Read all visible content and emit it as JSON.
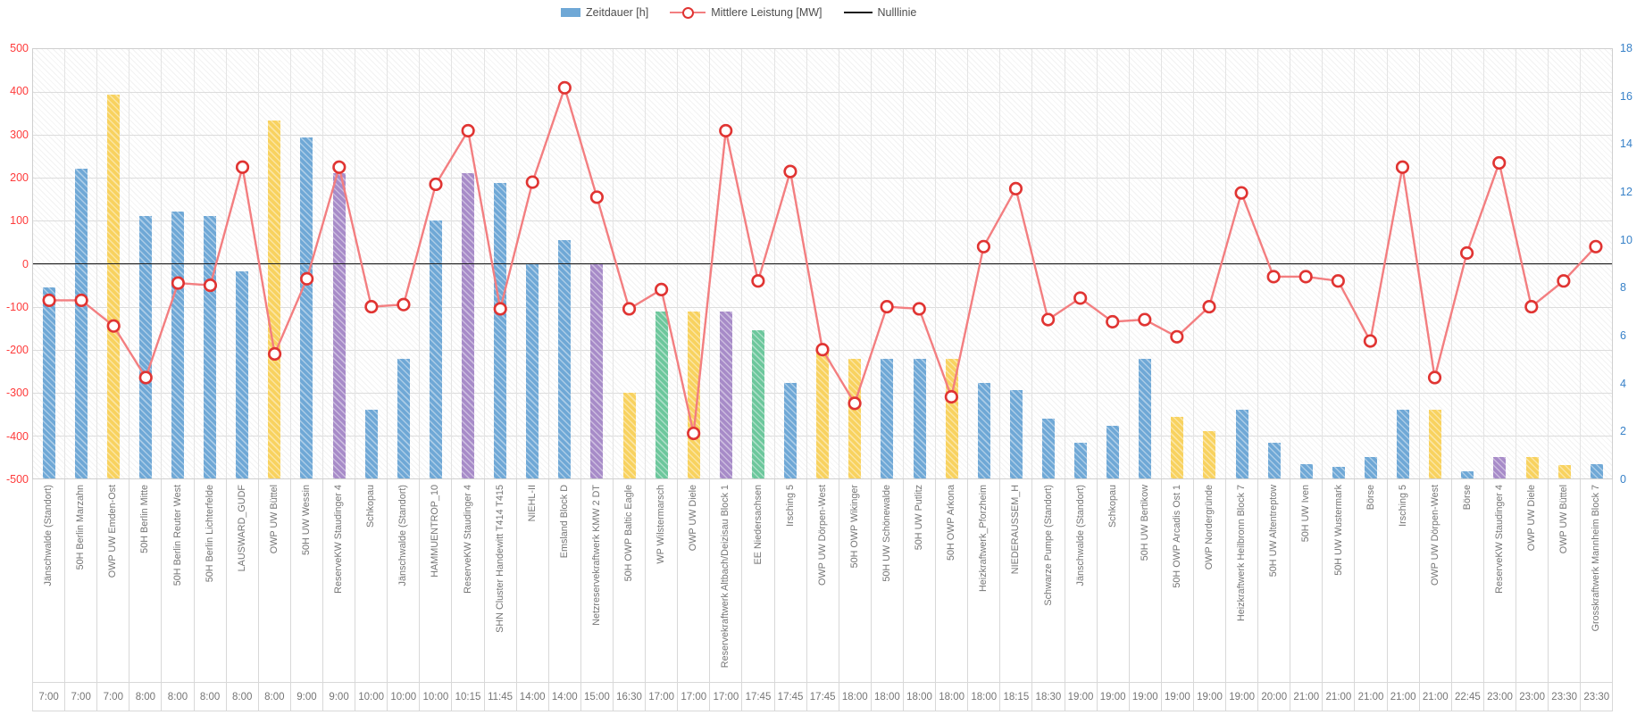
{
  "legend": {
    "bars_label": "Zeitdauer [h]",
    "line_label": "Mittlere Leistung [MW]",
    "zero_label": "Nulllinie"
  },
  "colors": {
    "bar_palette": {
      "blue": "#6fa8d6",
      "yellow": "#f8d25f",
      "purple": "#a78bc8",
      "green": "#6cc79c"
    },
    "line": "#f37e80",
    "marker_stroke": "#e03432",
    "marker_fill": "#ffffff",
    "zero_line": "#1c1c1c",
    "left_axis_text": "#fe3b3b",
    "right_axis_text": "#3781c8",
    "category_text": "#757575",
    "grid": "#dcdcdc"
  },
  "left_axis": {
    "ticks": [
      500,
      400,
      300,
      200,
      100,
      0,
      -100,
      -200,
      -300,
      -400,
      -500
    ]
  },
  "right_axis": {
    "ticks": [
      18,
      16,
      14,
      12,
      10,
      8,
      6,
      4,
      2,
      0
    ]
  },
  "chart_data": {
    "type": "bar",
    "title": "",
    "legend_position": "top-center",
    "grid": true,
    "left_axis_label": "Mittlere Leistung [MW]",
    "right_axis_label": "Zeitdauer [h]",
    "left_axis_range": [
      -500,
      500
    ],
    "right_axis_range": [
      0,
      18
    ],
    "zero_line": 0,
    "categories": [
      "Jänschwalde (Standort)",
      "50H Berlin Marzahn",
      "OWP UW Emden-Ost",
      "50H Berlin Mitte",
      "50H Berlin Reuter West",
      "50H Berlin Lichterfelde",
      "LAUSWARD_GUDF",
      "OWP UW Büttel",
      "50H UW Wessin",
      "ReserveKW Staudinger 4",
      "Schkopau",
      "Jänschwalde (Standort)",
      "HAMMUENTROP_10",
      "ReserveKW Staudinger 4",
      "SHN Cluster Handewitt T414 T415",
      "NIEHL-II",
      "Emsland Block D",
      "Netzreservekraftwerk KMW 2 DT",
      "50H OWP Baltic Eagle",
      "WP Wilstermarsch",
      "OWP UW Diele",
      "Reservekraftwerk Altbach/Deizisau Block 1",
      "EE Niedersachsen",
      "Irsching 5",
      "OWP UW Dörpen-West",
      "50H OWP Wikinger",
      "50H UW Schönewalde",
      "50H UW Putlitz",
      "50H OWP Arkona",
      "Heizkraftwerk_Pforzheim",
      "NIEDERAUSSEM_H",
      "Schwarze Pumpe (Standort)",
      "Jänschwalde (Standort)",
      "Schkopau",
      "50H UW Bertikow",
      "50H OWP Arcadis Ost 1",
      "OWP Nordergründe",
      "Heizkraftwerk Heilbronn Block 7",
      "50H UW Altentreptow",
      "50H UW Iven",
      "50H UW Wustermark",
      "Börse",
      "Irsching 5",
      "OWP UW Dörpen-West",
      "Börse",
      "ReserveKW Staudinger 4",
      "OWP UW Diele",
      "OWP UW Büttel",
      "Grosskraftwerk Mannheim Block 7"
    ],
    "times": [
      "7:00",
      "7:00",
      "7:00",
      "8:00",
      "8:00",
      "8:00",
      "8:00",
      "8:00",
      "9:00",
      "9:00",
      "10:00",
      "10:00",
      "10:00",
      "10:15",
      "11:45",
      "14:00",
      "14:00",
      "15:00",
      "16:30",
      "17:00",
      "17:00",
      "17:00",
      "17:45",
      "17:45",
      "17:45",
      "18:00",
      "18:00",
      "18:00",
      "18:00",
      "18:00",
      "18:15",
      "18:30",
      "19:00",
      "19:00",
      "19:00",
      "19:00",
      "19:00",
      "19:00",
      "20:00",
      "21:00",
      "21:00",
      "21:00",
      "21:00",
      "21:00",
      "22:45",
      "23:00",
      "23:00",
      "23:30",
      "23:30"
    ],
    "series": [
      {
        "name": "Zeitdauer [h]",
        "type": "bar",
        "axis": "right",
        "values": [
          8,
          13,
          16.1,
          11,
          11.2,
          11,
          8.7,
          15,
          14.3,
          12.8,
          2.9,
          5,
          10.8,
          12.8,
          12.4,
          9,
          10,
          9,
          3.6,
          7,
          7,
          7,
          6.2,
          4,
          5.3,
          5,
          5,
          5,
          5,
          4,
          3.7,
          2.5,
          1.5,
          2.2,
          5,
          2.6,
          2,
          2.9,
          1.5,
          0.6,
          0.5,
          0.9,
          2.9,
          2.9,
          0.3,
          0.9,
          0.9,
          0.55,
          0.6
        ],
        "color_keys": [
          "blue",
          "blue",
          "yellow",
          "blue",
          "blue",
          "blue",
          "blue",
          "yellow",
          "blue",
          "purple",
          "blue",
          "blue",
          "blue",
          "purple",
          "blue",
          "blue",
          "blue",
          "purple",
          "yellow",
          "green",
          "yellow",
          "purple",
          "green",
          "blue",
          "yellow",
          "yellow",
          "blue",
          "blue",
          "yellow",
          "blue",
          "blue",
          "blue",
          "blue",
          "blue",
          "blue",
          "yellow",
          "yellow",
          "blue",
          "blue",
          "blue",
          "blue",
          "blue",
          "blue",
          "yellow",
          "blue",
          "purple",
          "yellow",
          "yellow",
          "blue"
        ]
      },
      {
        "name": "Mittlere Leistung [MW]",
        "type": "line",
        "axis": "left",
        "values": [
          -85,
          -85,
          -145,
          -265,
          -45,
          -50,
          225,
          -210,
          -35,
          225,
          -100,
          -95,
          185,
          310,
          -105,
          190,
          410,
          155,
          -105,
          -60,
          -395,
          310,
          -40,
          215,
          -200,
          -325,
          -100,
          -105,
          -310,
          40,
          175,
          -130,
          -80,
          -135,
          -130,
          -170,
          -100,
          165,
          -30,
          -30,
          -40,
          -180,
          225,
          -265,
          25,
          235,
          -100,
          -40,
          40
        ]
      }
    ]
  }
}
